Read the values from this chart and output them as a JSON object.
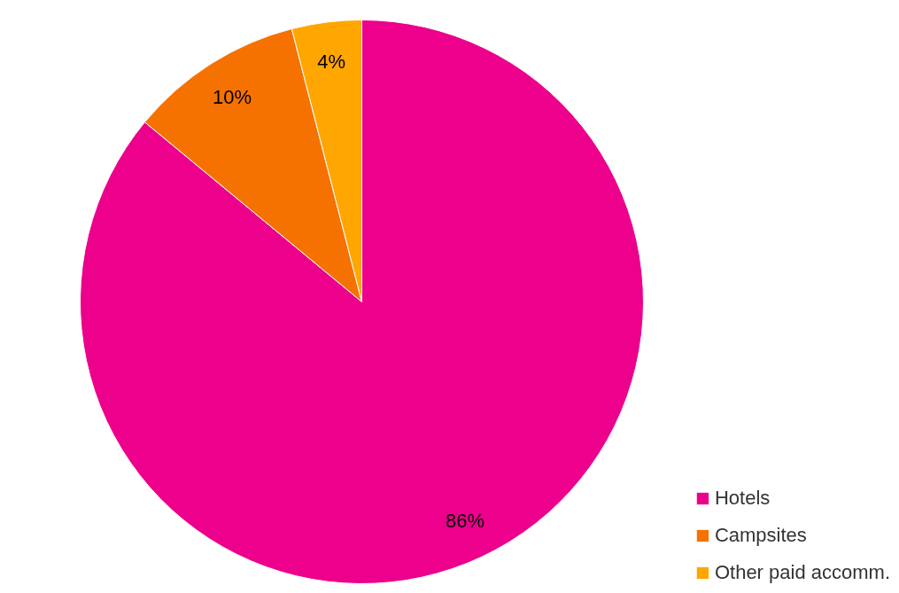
{
  "chart_data": {
    "type": "pie",
    "categories": [
      "Hotels",
      "Campsites",
      "Other paid accomm."
    ],
    "values": [
      86,
      10,
      4
    ],
    "colors": [
      "#ec008c",
      "#f57200",
      "#ffa600"
    ],
    "value_labels": [
      "86%",
      "10%",
      "4%"
    ],
    "legend": "bottom right"
  }
}
